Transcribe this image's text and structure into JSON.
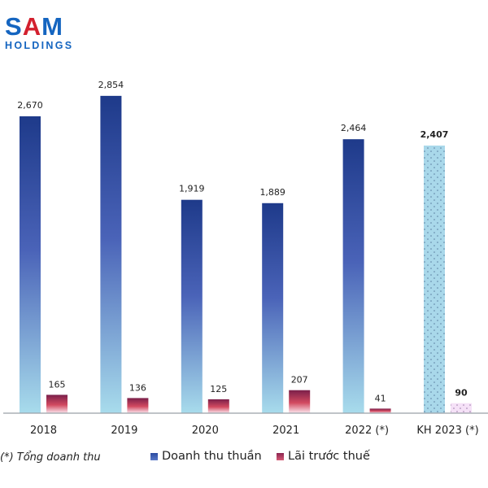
{
  "brand": {
    "name_part1": "S",
    "name_part2": "A",
    "name_part3": "M",
    "subtitle": "HOLDINGS",
    "primary_color": "#1565c0",
    "accent_color": "#d3202e"
  },
  "footnote": "(*) Tổng doanh thu",
  "chart_data": {
    "type": "bar",
    "title": "",
    "xlabel": "",
    "ylabel": "",
    "categories": [
      "2018",
      "2019",
      "2020",
      "2021",
      "2022 (*)",
      "KH 2023   (*)"
    ],
    "series": [
      {
        "name": "Doanh thu thuần",
        "values": [
          2670,
          2854,
          1919,
          1889,
          2464,
          2407
        ],
        "labels": [
          "2,670",
          "2,854",
          "1,919",
          "1,889",
          "2,464",
          "2,407"
        ],
        "color_top": "#1f3a8a",
        "color_bottom": "#a8d8ea",
        "plan_color": "#a9d8ea"
      },
      {
        "name": "Lãi trước thuế",
        "values": [
          165,
          136,
          125,
          207,
          41,
          90
        ],
        "labels": [
          "165",
          "136",
          "125",
          "207",
          "41",
          "90"
        ],
        "color_top": "#7a1f4a",
        "color_bottom": "#fbe3ea",
        "plan_color": "#f3dcf5"
      }
    ],
    "highlighted_category": "KH 2023   (*)",
    "highlight_style": "dotted pattern, bold labels",
    "ylim": [
      0,
      3000
    ],
    "grid": false,
    "legend_position": "bottom"
  }
}
